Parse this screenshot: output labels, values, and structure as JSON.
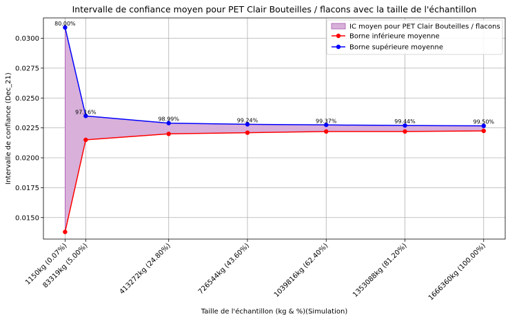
{
  "chart_data": {
    "type": "line",
    "title": "Intervalle de confiance moyen pour PET Clair Bouteilles / flacons avec la taille de l'échantillon",
    "xlabel": "Taille de l'échantillon (kg & %)(Simulation)",
    "ylabel": "Intervalle de confiance (Dec_21)",
    "x": [
      1150,
      83319,
      413272,
      726544,
      1039816,
      1353088,
      1666360
    ],
    "x_tick_labels": [
      "1150kg (0.07%)",
      "83319kg (5.00%)",
      "413272kg (24.80%)",
      "726544kg (43.60%)",
      "1039816kg (62.40%)",
      "1353088kg (81.20%)",
      "1666360kg (100.00%)"
    ],
    "xlim": [
      -85000,
      1752000
    ],
    "ylim": [
      0.0132,
      0.0317
    ],
    "yticks": [
      0.015,
      0.0175,
      0.02,
      0.0225,
      0.025,
      0.0275,
      0.03
    ],
    "ytick_labels": [
      "0.0150",
      "0.0175",
      "0.0200",
      "0.0225",
      "0.0250",
      "0.0275",
      "0.0300"
    ],
    "grid": true,
    "legend_position": "top-right",
    "band": {
      "name": "IC moyen pour PET Clair Bouteilles / flacons",
      "color": "#d8b0da",
      "edge": "#a955b0"
    },
    "series": [
      {
        "name": "Borne inférieure moyenne",
        "color": "#ff0000",
        "values": [
          0.0138,
          0.0215,
          0.022,
          0.0221,
          0.0222,
          0.0222,
          0.02225
        ]
      },
      {
        "name": "Borne supérieure moyenne",
        "color": "#0000ff",
        "values": [
          0.0309,
          0.0235,
          0.0229,
          0.0228,
          0.02275,
          0.0227,
          0.02267
        ]
      }
    ],
    "data_labels": [
      "80.00%",
      "97.16%",
      "98.99%",
      "99.24%",
      "99.37%",
      "99.44%",
      "99.50%"
    ]
  }
}
